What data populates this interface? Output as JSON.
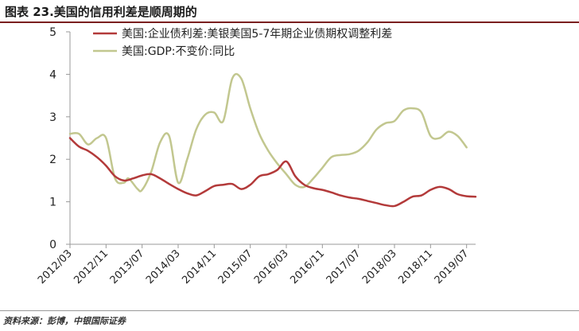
{
  "header": {
    "title": "图表 23.美国的信用利差是顺周期的"
  },
  "footer": {
    "source": "资料来源：彭博，中银国际证券"
  },
  "colors": {
    "spread": "#b33a3a",
    "gdp": "#c2c78f",
    "axis": "#999999",
    "title_rule": "#7a1f1f"
  },
  "chart_data": {
    "type": "line",
    "title": "",
    "xlabel": "",
    "ylabel": "",
    "ylim": [
      0,
      5
    ],
    "yticks": [
      "0",
      "1",
      "2",
      "3",
      "4",
      "5"
    ],
    "xlim": [
      "2012/03",
      "2019/09"
    ],
    "x_tick_labels": [
      "2012/03",
      "2012/11",
      "2013/07",
      "2014/03",
      "2014/11",
      "2015/07",
      "2016/03",
      "2016/11",
      "2017/07",
      "2018/03",
      "2018/11",
      "2019/07"
    ],
    "grid": false,
    "legend_position": "top",
    "series": [
      {
        "name": "美国:企业债利差:美银美国5-7年期企业债期权调整利差",
        "color": "#b33a3a",
        "points": [
          [
            "2012/03",
            2.5
          ],
          [
            "2012/05",
            2.3
          ],
          [
            "2012/07",
            2.2
          ],
          [
            "2012/09",
            2.05
          ],
          [
            "2012/11",
            1.85
          ],
          [
            "2013/01",
            1.6
          ],
          [
            "2013/03",
            1.5
          ],
          [
            "2013/05",
            1.55
          ],
          [
            "2013/07",
            1.62
          ],
          [
            "2013/09",
            1.65
          ],
          [
            "2013/11",
            1.55
          ],
          [
            "2014/01",
            1.42
          ],
          [
            "2014/03",
            1.3
          ],
          [
            "2014/05",
            1.2
          ],
          [
            "2014/07",
            1.15
          ],
          [
            "2014/09",
            1.25
          ],
          [
            "2014/11",
            1.37
          ],
          [
            "2015/01",
            1.4
          ],
          [
            "2015/03",
            1.42
          ],
          [
            "2015/05",
            1.3
          ],
          [
            "2015/07",
            1.4
          ],
          [
            "2015/09",
            1.6
          ],
          [
            "2015/11",
            1.65
          ],
          [
            "2016/01",
            1.75
          ],
          [
            "2016/03",
            1.95
          ],
          [
            "2016/05",
            1.6
          ],
          [
            "2016/07",
            1.4
          ],
          [
            "2016/09",
            1.32
          ],
          [
            "2016/11",
            1.28
          ],
          [
            "2017/01",
            1.22
          ],
          [
            "2017/03",
            1.15
          ],
          [
            "2017/05",
            1.1
          ],
          [
            "2017/07",
            1.07
          ],
          [
            "2017/09",
            1.02
          ],
          [
            "2017/11",
            0.97
          ],
          [
            "2018/01",
            0.92
          ],
          [
            "2018/03",
            0.9
          ],
          [
            "2018/05",
            1.0
          ],
          [
            "2018/07",
            1.12
          ],
          [
            "2018/09",
            1.15
          ],
          [
            "2018/11",
            1.28
          ],
          [
            "2019/01",
            1.35
          ],
          [
            "2019/03",
            1.3
          ],
          [
            "2019/05",
            1.18
          ],
          [
            "2019/07",
            1.13
          ],
          [
            "2019/09",
            1.12
          ]
        ]
      },
      {
        "name": "美国:GDP:不变价:同比",
        "color": "#c2c78f",
        "points": [
          [
            "2012/03",
            2.6
          ],
          [
            "2012/05",
            2.6
          ],
          [
            "2012/07",
            2.35
          ],
          [
            "2012/09",
            2.5
          ],
          [
            "2012/11",
            2.5
          ],
          [
            "2013/01",
            1.55
          ],
          [
            "2013/03",
            1.45
          ],
          [
            "2013/04",
            1.55
          ],
          [
            "2013/06",
            1.3
          ],
          [
            "2013/07",
            1.28
          ],
          [
            "2013/09",
            1.7
          ],
          [
            "2013/11",
            2.4
          ],
          [
            "2014/01",
            2.55
          ],
          [
            "2014/03",
            1.45
          ],
          [
            "2014/05",
            2.0
          ],
          [
            "2014/07",
            2.7
          ],
          [
            "2014/09",
            3.05
          ],
          [
            "2014/11",
            3.1
          ],
          [
            "2015/01",
            2.9
          ],
          [
            "2015/03",
            3.9
          ],
          [
            "2015/05",
            3.9
          ],
          [
            "2015/07",
            3.2
          ],
          [
            "2015/09",
            2.6
          ],
          [
            "2015/11",
            2.2
          ],
          [
            "2016/01",
            1.9
          ],
          [
            "2016/03",
            1.65
          ],
          [
            "2016/05",
            1.4
          ],
          [
            "2016/07",
            1.35
          ],
          [
            "2016/09",
            1.55
          ],
          [
            "2016/11",
            1.8
          ],
          [
            "2017/01",
            2.05
          ],
          [
            "2017/03",
            2.1
          ],
          [
            "2017/05",
            2.12
          ],
          [
            "2017/07",
            2.2
          ],
          [
            "2017/09",
            2.4
          ],
          [
            "2017/11",
            2.7
          ],
          [
            "2018/01",
            2.85
          ],
          [
            "2018/03",
            2.9
          ],
          [
            "2018/05",
            3.15
          ],
          [
            "2018/07",
            3.2
          ],
          [
            "2018/09",
            3.1
          ],
          [
            "2018/11",
            2.55
          ],
          [
            "2019/01",
            2.5
          ],
          [
            "2019/03",
            2.65
          ],
          [
            "2019/05",
            2.55
          ],
          [
            "2019/07",
            2.28
          ]
        ]
      }
    ]
  }
}
